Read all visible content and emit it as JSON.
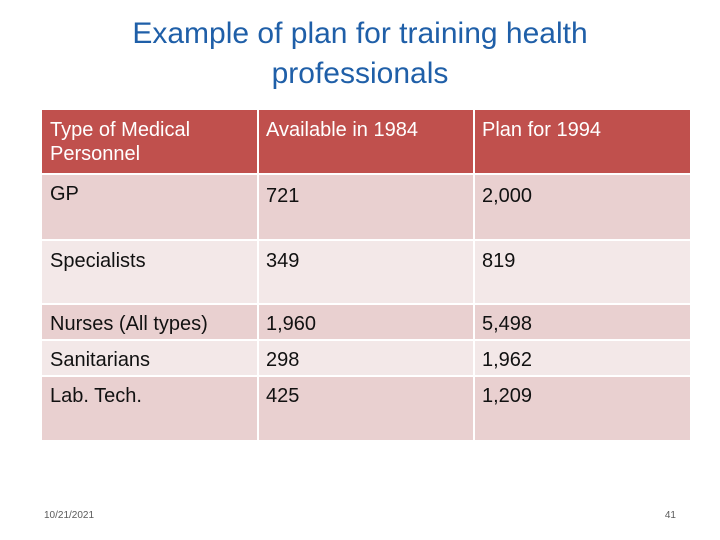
{
  "slide": {
    "title_line1": "Example of plan for training health",
    "title_line2": "professionals",
    "footer_date": "10/21/2021",
    "page_number": "41"
  },
  "table": {
    "headers": [
      "Type of Medical Personnel",
      "Available in 1984",
      "Plan for 1994"
    ],
    "rows": [
      [
        "GP",
        "721",
        "2,000"
      ],
      [
        "Specialists",
        "349",
        "819"
      ],
      [
        "Nurses (All types)",
        "1,960",
        "5,498"
      ],
      [
        "Sanitarians",
        "298",
        "1,962"
      ],
      [
        "Lab. Tech.",
        "425",
        "1,209"
      ]
    ]
  },
  "colors": {
    "title": "#1f5fa8",
    "header_bg": "#c0504d",
    "row_band_dark": "#e9d0d0",
    "row_band_light": "#f3e8e8"
  }
}
